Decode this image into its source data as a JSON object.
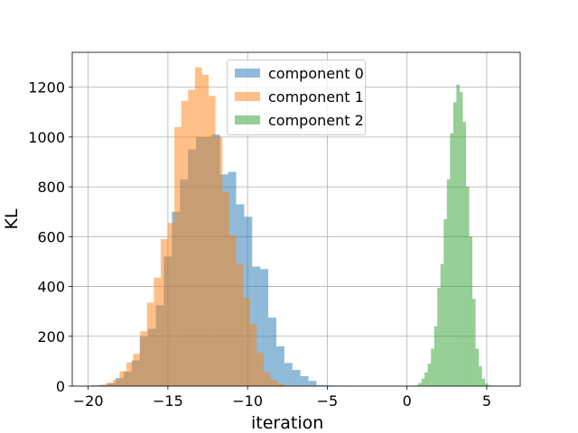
{
  "chart_data": {
    "type": "histogram",
    "title": "",
    "xlabel": "iteration",
    "ylabel": "KL",
    "xlim": [
      -21.0,
      7.1
    ],
    "ylim": [
      0,
      1340
    ],
    "xticks": [
      -20,
      -15,
      -10,
      -5,
      0,
      5
    ],
    "yticks": [
      0,
      200,
      400,
      600,
      800,
      1000,
      1200
    ],
    "grid": true,
    "legend_position": "top-center",
    "series": [
      {
        "name": "component 0",
        "color": "#1f77b4",
        "alpha": 0.5,
        "bin_start": -19.79,
        "bin_width": 0.504,
        "values": [
          3,
          5,
          12,
          32,
          58,
          103,
          198,
          230,
          325,
          520,
          700,
          830,
          950,
          1000,
          1000,
          1010,
          850,
          860,
          730,
          680,
          480,
          470,
          275,
          160,
          93,
          65,
          40,
          21,
          4,
          3,
          2,
          2
        ]
      },
      {
        "name": "component 1",
        "color": "#ff7f0e",
        "alpha": 0.5,
        "bin_start": -19.32,
        "bin_width": 0.43,
        "values": [
          3,
          12,
          25,
          60,
          95,
          130,
          220,
          335,
          435,
          590,
          655,
          1040,
          1145,
          1190,
          1280,
          1250,
          1165,
          1000,
          780,
          605,
          490,
          355,
          250,
          135,
          55,
          25,
          10,
          3,
          2
        ]
      },
      {
        "name": "component 2",
        "color": "#2ca02c",
        "alpha": 0.5,
        "bin_start": 0.5,
        "bin_width": 0.2,
        "values": [
          3,
          12,
          30,
          55,
          90,
          150,
          240,
          395,
          490,
          670,
          830,
          1015,
          1140,
          1210,
          1180,
          1060,
          800,
          600,
          350,
          150,
          80,
          30,
          10,
          3
        ]
      }
    ]
  }
}
